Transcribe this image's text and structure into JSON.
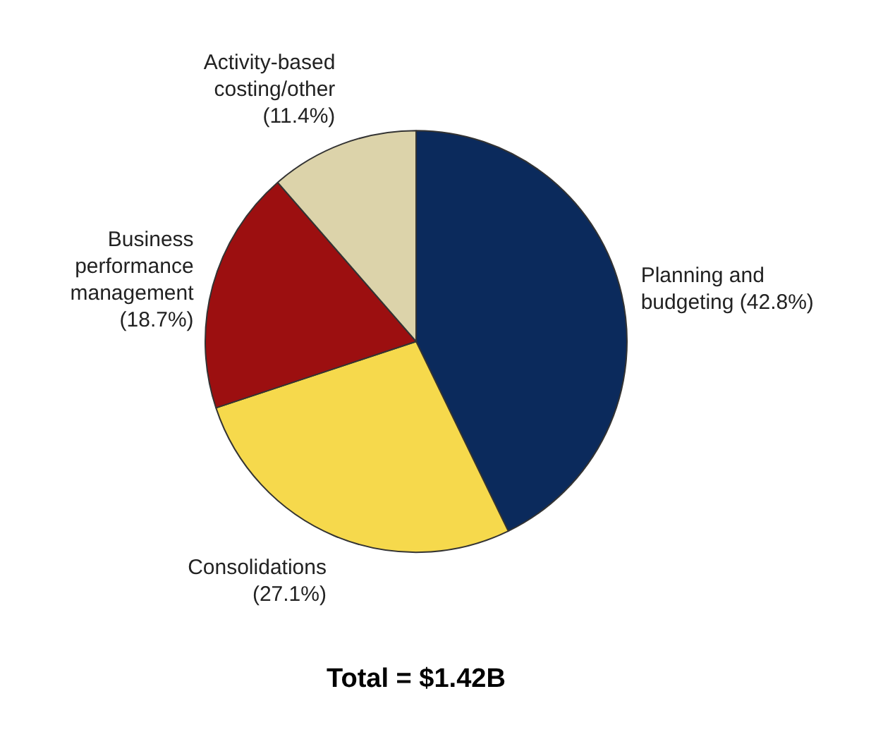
{
  "chart_data": {
    "type": "pie",
    "title": "Total = $1.42B",
    "categories": [
      "Planning and budgeting",
      "Consolidations",
      "Business performance management",
      "Activity-based costing/other"
    ],
    "values": [
      42.8,
      27.1,
      18.7,
      11.4
    ],
    "value_labels": [
      "(42.8%)",
      "(27.1%)",
      "(18.7%)",
      "(11.4%)"
    ],
    "colors": [
      "#0b2a5c",
      "#f6d94c",
      "#9c0f10",
      "#dcd3aa"
    ],
    "legend": false
  }
}
